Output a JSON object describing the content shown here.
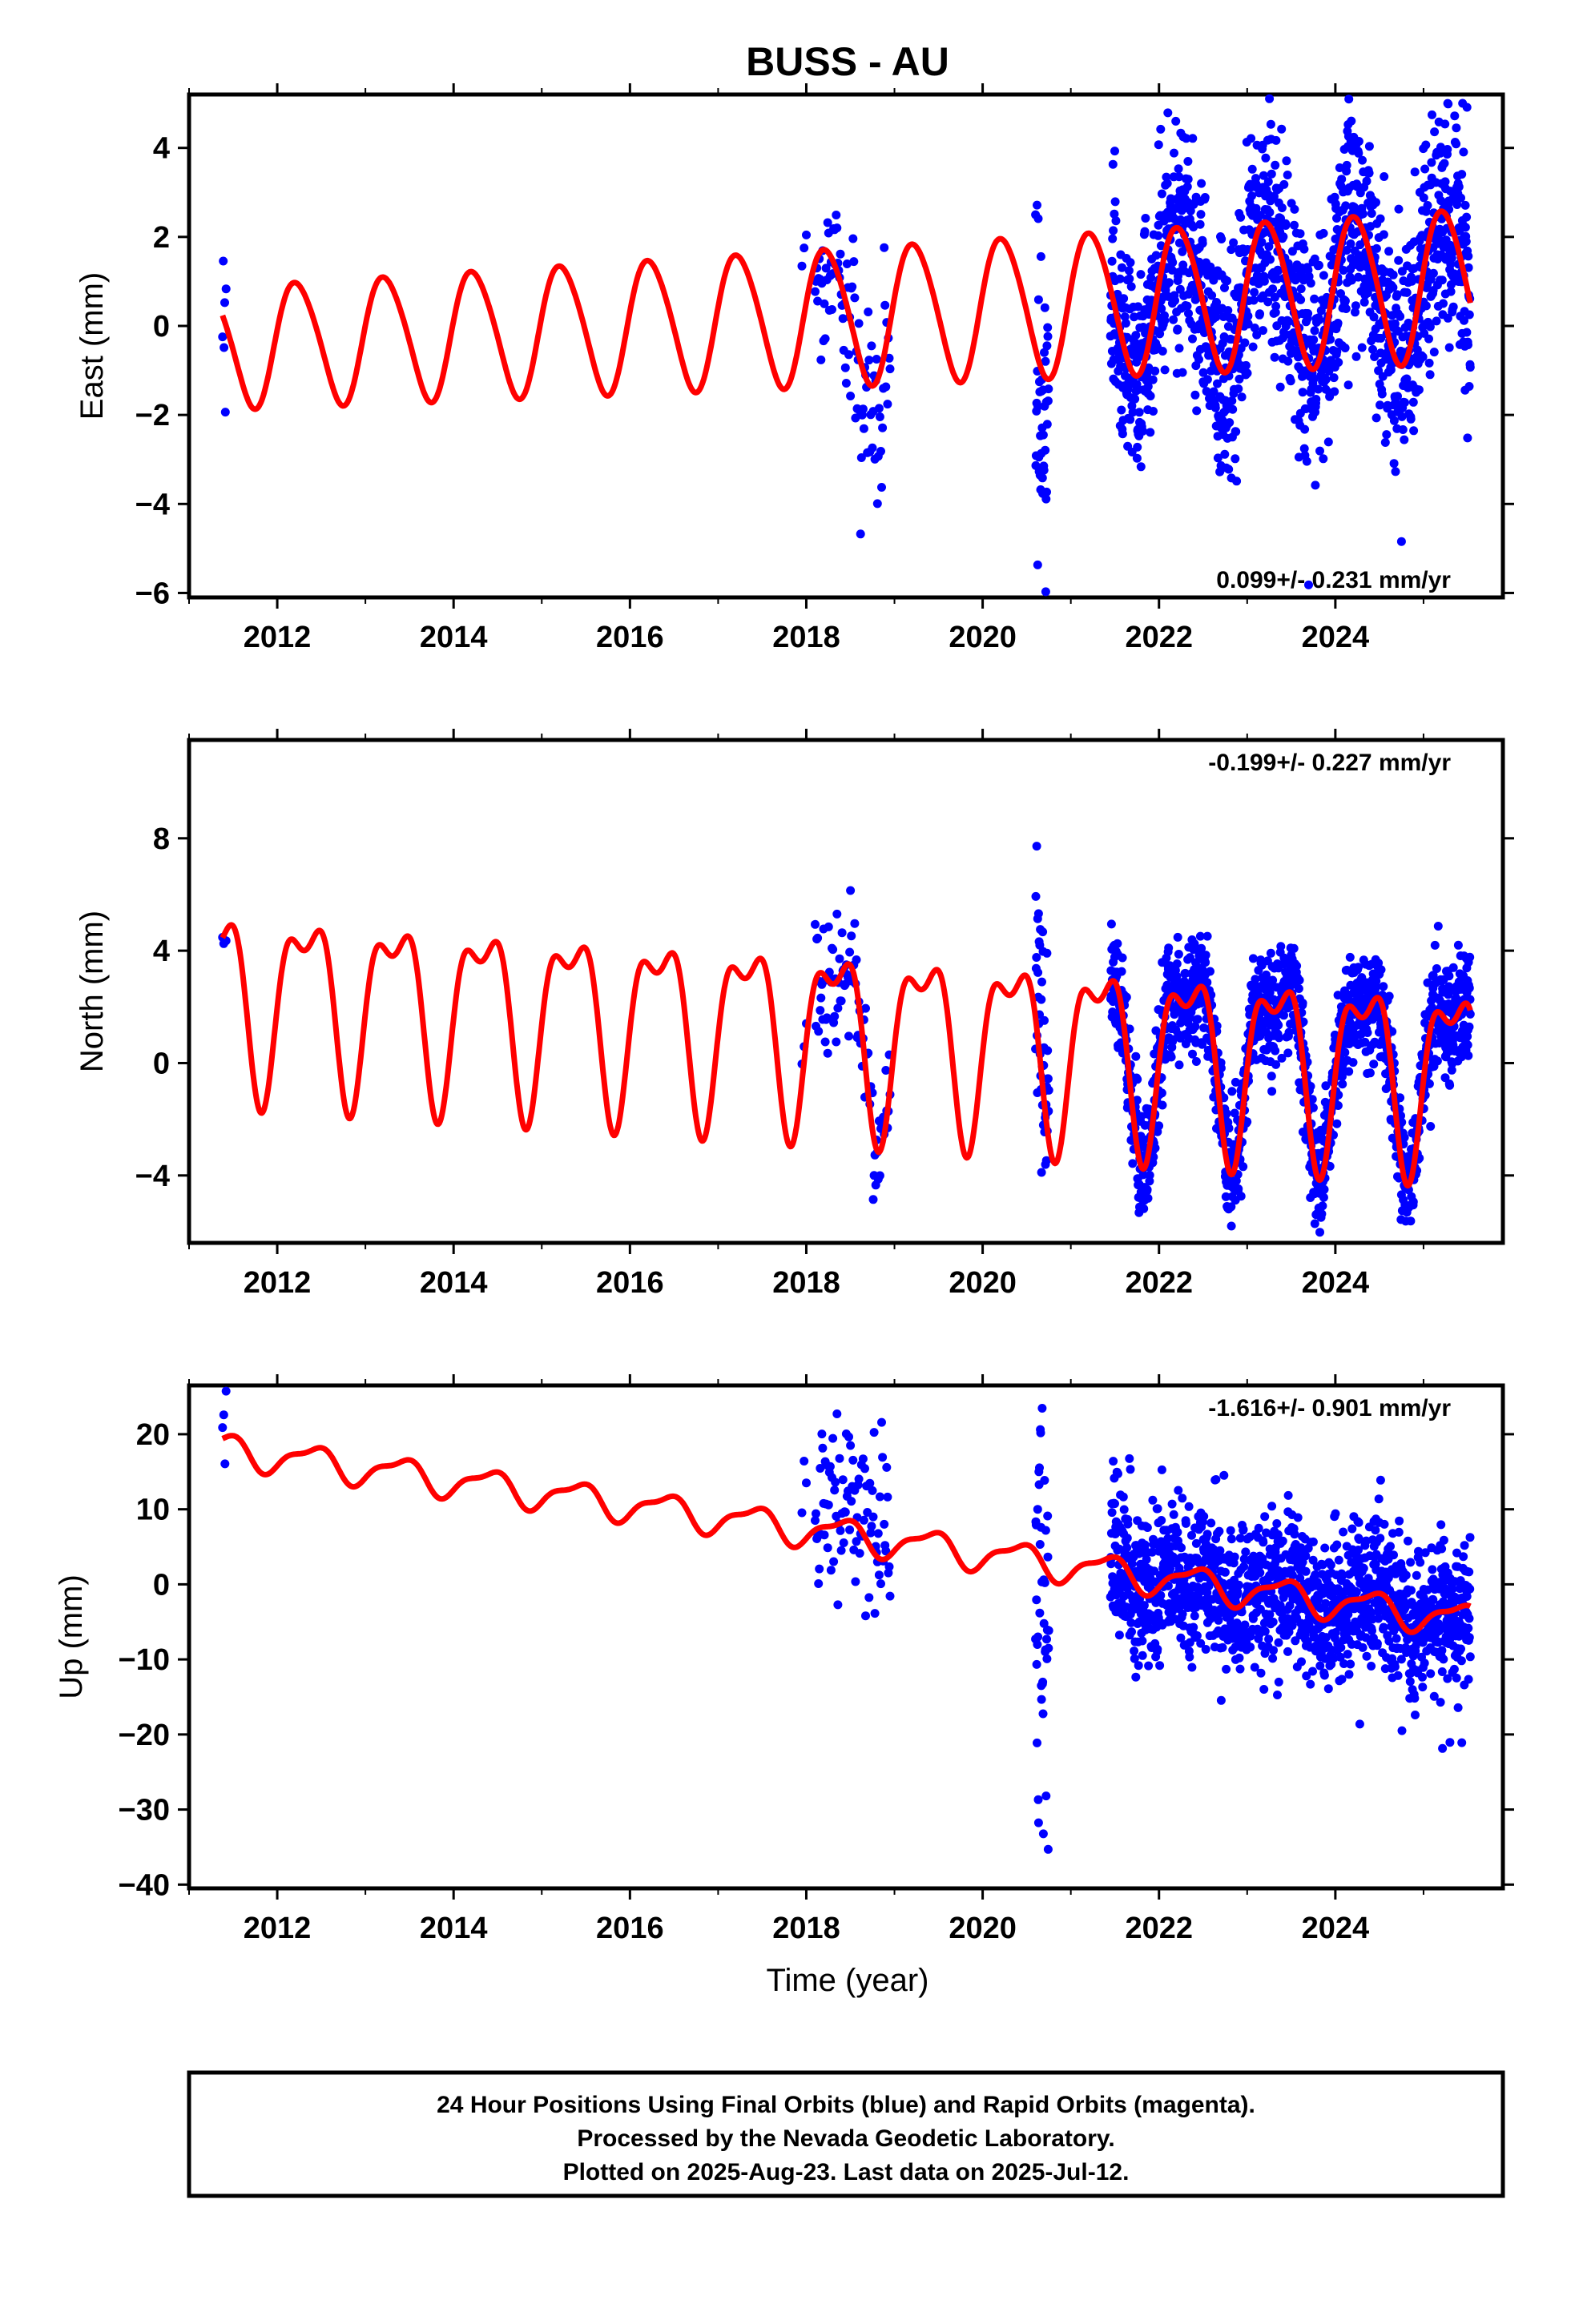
{
  "title": "BUSS - AU",
  "footer": {
    "lines": [
      "24 Hour Positions Using Final Orbits (blue) and Rapid Orbits (magenta).",
      "Processed by the Nevada Geodetic Laboratory.",
      "Plotted on 2025-Aug-23. Last data on 2025-Jul-12."
    ]
  },
  "colors": {
    "observations": "#0000ff",
    "model": "#ff0000",
    "frame": "#000000"
  },
  "chart_data": [
    {
      "type": "scatter",
      "ylabel": "East (mm)",
      "xlabel": "",
      "xlim": [
        2011.0,
        2025.9
      ],
      "ylim": [
        -6.1,
        5.2
      ],
      "x_ticks": [
        2012,
        2014,
        2016,
        2018,
        2020,
        2022,
        2024
      ],
      "x_tick_labels": [
        "2012",
        "2014",
        "2016",
        "2018",
        "2020",
        "2022",
        "2024"
      ],
      "y_ticks": [
        -6,
        -4,
        -2,
        0,
        2,
        4
      ],
      "y_tick_labels": [
        "−6",
        "−4",
        "−2",
        "0",
        "2",
        "4"
      ],
      "rate_label": "0.099+/- 0.231 mm/yr",
      "rate_position": "bottom-right",
      "model": {
        "start": 2011.38,
        "end": 2025.53,
        "t0": 2011.38,
        "offset": -0.45,
        "trend": 0.099,
        "annual_sin": 1.35,
        "annual_cos": 0.2,
        "semiannual_sin": 0.1,
        "semiannual_cos": 0.1,
        "amp_growth": 0.018
      },
      "observation_clusters": [
        {
          "start": 2011.38,
          "end": 2011.42,
          "count": 6,
          "spread": 0.7
        },
        {
          "start": 2017.95,
          "end": 2018.0,
          "count": 3,
          "spread": 0.3,
          "shift": 1.5
        },
        {
          "start": 2018.1,
          "end": 2018.95,
          "count": 90,
          "spread": 1.1,
          "shift": -0.6
        },
        {
          "start": 2020.6,
          "end": 2020.75,
          "count": 45,
          "spread": 1.8,
          "shift": -0.6
        },
        {
          "start": 2021.45,
          "end": 2025.53,
          "count": 1450,
          "spread": 1.3
        }
      ]
    },
    {
      "type": "scatter",
      "ylabel": "North (mm)",
      "xlabel": "",
      "xlim": [
        2011.0,
        2025.9
      ],
      "ylim": [
        -6.4,
        11.5
      ],
      "x_ticks": [
        2012,
        2014,
        2016,
        2018,
        2020,
        2022,
        2024
      ],
      "x_tick_labels": [
        "2012",
        "2014",
        "2016",
        "2018",
        "2020",
        "2022",
        "2024"
      ],
      "y_ticks": [
        -4,
        0,
        4,
        8
      ],
      "y_tick_labels": [
        "−4",
        "0",
        "4",
        "8"
      ],
      "rate_label": "-0.199+/- 0.227 mm/yr",
      "rate_position": "top-right",
      "model": {
        "start": 2011.38,
        "end": 2025.53,
        "t0": 2011.38,
        "offset": 2.6,
        "trend": -0.199,
        "annual_sin": 2.6,
        "annual_cos": -1.4,
        "semiannual_sin": 1.0,
        "semiannual_cos": 0.9,
        "amp_growth": 0.0
      },
      "observation_clusters": [
        {
          "start": 2011.38,
          "end": 2011.42,
          "count": 4,
          "spread": 0.2,
          "shift": -0.4
        },
        {
          "start": 2017.95,
          "end": 2018.0,
          "count": 3,
          "spread": 0.4,
          "shift": 0.8
        },
        {
          "start": 2018.1,
          "end": 2018.95,
          "count": 90,
          "spread": 1.2
        },
        {
          "start": 2020.6,
          "end": 2020.75,
          "count": 45,
          "spread": 2.5,
          "shift": 1.0
        },
        {
          "start": 2021.45,
          "end": 2025.53,
          "count": 1450,
          "spread": 1.0
        }
      ]
    },
    {
      "type": "scatter",
      "ylabel": "Up (mm)",
      "xlabel": "Time (year)",
      "xlim": [
        2011.0,
        2025.9
      ],
      "ylim": [
        -40.5,
        26.5
      ],
      "x_ticks": [
        2012,
        2014,
        2016,
        2018,
        2020,
        2022,
        2024
      ],
      "x_tick_labels": [
        "2012",
        "2014",
        "2016",
        "2018",
        "2020",
        "2022",
        "2024"
      ],
      "y_ticks": [
        -40,
        -30,
        -20,
        -10,
        0,
        10,
        20
      ],
      "y_tick_labels": [
        "−40",
        "−30",
        "−20",
        "−10",
        "0",
        "10",
        "20"
      ],
      "rate_label": "-1.616+/- 0.901 mm/yr",
      "rate_position": "top-right",
      "model": {
        "start": 2011.38,
        "end": 2025.53,
        "t0": 2011.38,
        "offset": 18.0,
        "trend": -1.616,
        "annual_sin": 1.2,
        "annual_cos": -1.6,
        "semiannual_sin": 0.6,
        "semiannual_cos": 0.4,
        "amp_growth": 0.0
      },
      "observation_clusters": [
        {
          "start": 2011.38,
          "end": 2011.42,
          "count": 4,
          "spread": 2.5,
          "shift": 3.5
        },
        {
          "start": 2017.95,
          "end": 2018.0,
          "count": 3,
          "spread": 3.0,
          "shift": 6.0
        },
        {
          "start": 2018.1,
          "end": 2018.95,
          "count": 90,
          "spread": 6.0,
          "shift": 3.0
        },
        {
          "start": 2020.6,
          "end": 2020.75,
          "count": 45,
          "spread": 14.0,
          "shift": -5.0
        },
        {
          "start": 2021.45,
          "end": 2025.53,
          "count": 1450,
          "spread": 5.0
        }
      ]
    }
  ]
}
